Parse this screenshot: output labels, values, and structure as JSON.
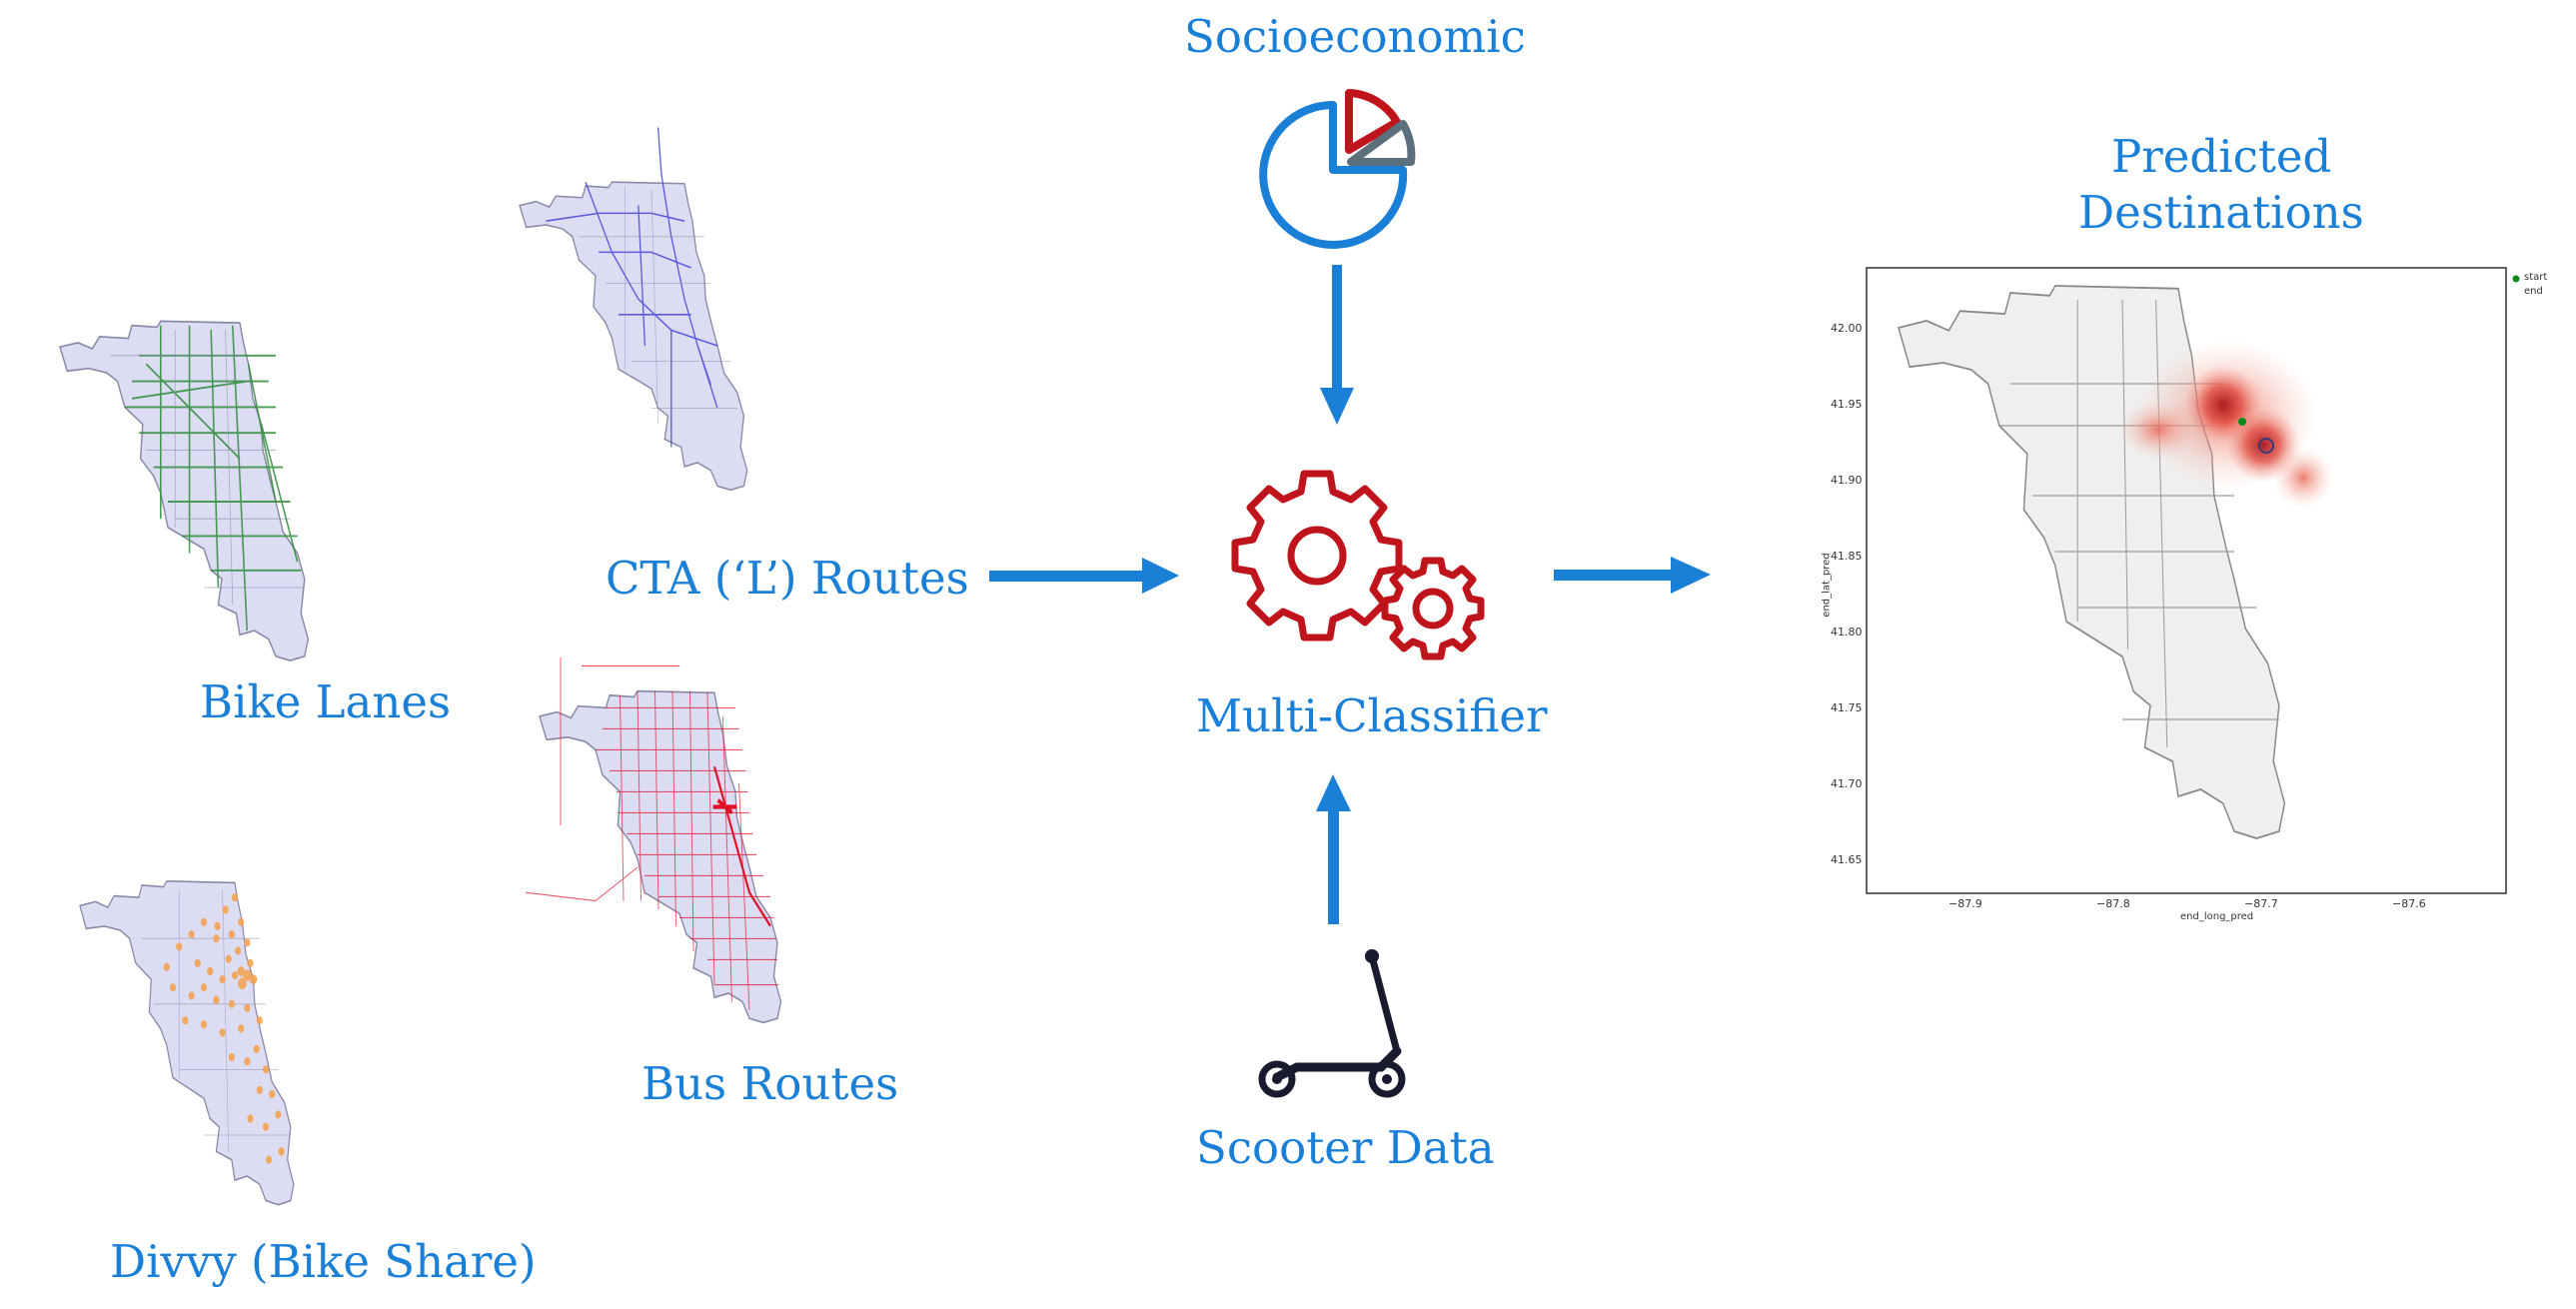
{
  "labels": {
    "bike_lanes": "Bike Lanes",
    "cta_routes": "CTA (‘L’) Routes",
    "bus_routes": "Bus Routes",
    "divvy": "Divvy (Bike Share)",
    "socioeconomic": "Socioeconomic",
    "multi_classifier": "Multi-Classifier",
    "scooter_data": "Scooter Data",
    "predicted_line1": "Predicted",
    "predicted_line2": "Destinations"
  },
  "plot": {
    "xlabel": "end_long_pred",
    "ylabel": "end_lat_pred",
    "xticks": [
      "−87.9",
      "−87.8",
      "−87.7",
      "−87.6"
    ],
    "yticks": [
      "42.00",
      "41.95",
      "41.90",
      "41.85",
      "41.80",
      "41.75",
      "41.70",
      "41.65"
    ],
    "legend": [
      "start",
      "end"
    ]
  },
  "colors": {
    "label_blue": "#1a7fd6",
    "arrow_blue": "#1a7fd6",
    "map_fill": "#dcdcf2",
    "bike_lane_green": "#2e8b3a",
    "cta_blue": "#3b3bd6",
    "bus_red": "#e0102a",
    "divvy_orange": "#f5a04a",
    "gear_red": "#c0141c",
    "pie_blue": "#1a7fd6",
    "pie_red": "#c0141c",
    "pie_gray": "#5c6f7c"
  },
  "icons": [
    "pie-chart-icon",
    "gears-icon",
    "scooter-icon"
  ]
}
